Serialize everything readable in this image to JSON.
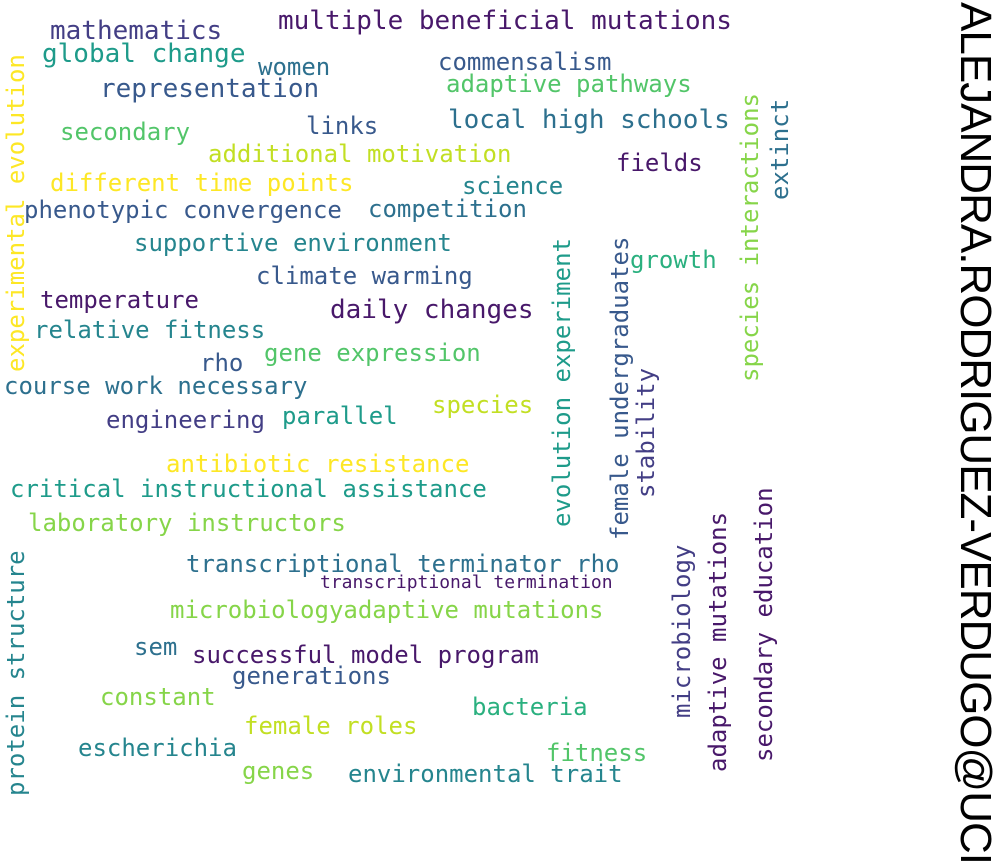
{
  "author": "ALEJANDRA.RODRIGUEZ-VERDUGO@UCI",
  "words": {
    "multiple_beneficial_mutations": "multiple beneficial mutations",
    "mathematics": "mathematics",
    "global_change": "global change",
    "women": "women",
    "commensalism": "commensalism",
    "adaptive_pathways": "adaptive pathways",
    "representation": "representation",
    "local_high_schools": "local high schools",
    "secondary": "secondary",
    "links": "links",
    "additional_motivation": "additional motivation",
    "fields": "fields",
    "different_time_points": "different time points",
    "science": "science",
    "phenotypic_convergence": "phenotypic convergence",
    "competition": "competition",
    "supportive_environment": "supportive environment",
    "growth": "growth",
    "climate_warming": "climate warming",
    "temperature": "temperature",
    "daily_changes": "daily changes",
    "relative_fitness": "relative fitness",
    "rho": "rho",
    "gene_expression": "gene expression",
    "course_work_necessary": "course work necessary",
    "engineering": "engineering",
    "parallel": "parallel",
    "species": "species",
    "antibiotic_resistance": "antibiotic resistance",
    "critical_instructional_assistance": "critical instructional assistance",
    "laboratory_instructors": "laboratory instructors",
    "transcriptional_terminator_rho": "transcriptional terminator rho",
    "transcriptional_termination": "transcriptional termination",
    "microbiology_adaptive_mutations": "microbiologyadaptive mutations",
    "sem": "sem",
    "successful_model_program": "successful model program",
    "generations": "generations",
    "constant": "constant",
    "female_roles": "female roles",
    "bacteria": "bacteria",
    "escherichia": "escherichia",
    "fitness": "fitness",
    "genes": "genes",
    "environmental_trait": "environmental trait",
    "experimental_evolution": "experimental evolution",
    "protein_structure": "protein structure",
    "evolution_experiment": "evolution experiment",
    "female_undergraduates": "female undergraduates",
    "stability": "stability",
    "species_interactions": "species interactions",
    "extinct": "extinct",
    "microbiology": "microbiology",
    "adaptive_mutations": "adaptive mutations",
    "secondary_education": "secondary education"
  },
  "palette": {
    "dark_purple": "#48186a",
    "indigo": "#433e85",
    "blue": "#38598c",
    "teal_blue": "#2d708e",
    "teal": "#25858e",
    "green_teal": "#1e9b8a",
    "green": "#2ab07f",
    "light_green": "#52c569",
    "lime": "#86d549",
    "yellow_green": "#c2df23",
    "yellow": "#fde725"
  }
}
